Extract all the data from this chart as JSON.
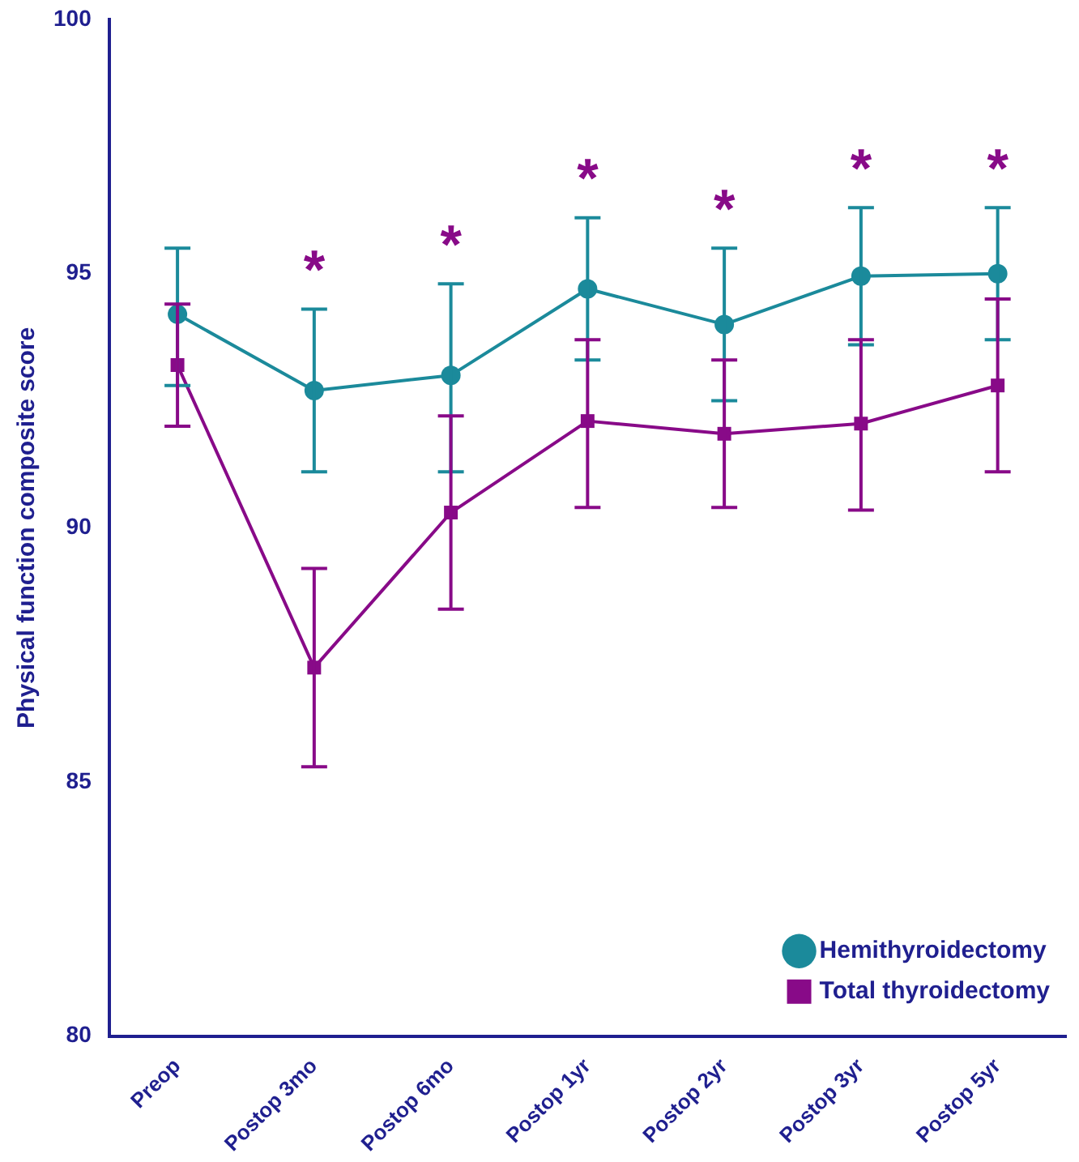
{
  "chart_data": {
    "type": "line",
    "ylabel": "Physical function composite score",
    "categories": [
      "Preop",
      "Postop 3mo",
      "Postop 6mo",
      "Postop 1yr",
      "Postop 2yr",
      "Postop 3yr",
      "Postop 5yr"
    ],
    "series": [
      {
        "name": "Hemithyroidectomy",
        "color": "#1b8a9b",
        "marker": "circle",
        "values": [
          94.2,
          92.7,
          93.0,
          94.7,
          94.0,
          94.95,
          95.0
        ],
        "errors": [
          [
            92.8,
            95.5
          ],
          [
            91.1,
            94.3
          ],
          [
            91.1,
            94.8
          ],
          [
            93.3,
            96.1
          ],
          [
            92.5,
            95.5
          ],
          [
            93.6,
            96.3
          ],
          [
            93.7,
            96.3
          ]
        ]
      },
      {
        "name": "Total thyroidectomy",
        "color": "#880a88",
        "marker": "square",
        "values": [
          93.2,
          87.25,
          90.3,
          92.1,
          91.85,
          92.05,
          92.8
        ],
        "errors": [
          [
            92.0,
            94.4
          ],
          [
            85.3,
            89.2
          ],
          [
            88.4,
            92.2
          ],
          [
            90.4,
            93.7
          ],
          [
            90.4,
            93.3
          ],
          [
            90.35,
            93.7
          ],
          [
            91.1,
            94.5
          ]
        ]
      }
    ],
    "ylim": [
      80,
      100
    ],
    "yticks": [
      80,
      85,
      90,
      95,
      100
    ],
    "grid": false,
    "legend": "bottom right",
    "line_style": "solid",
    "annotations": [
      "*",
      "*",
      "*",
      "*",
      "*",
      "*"
    ]
  }
}
